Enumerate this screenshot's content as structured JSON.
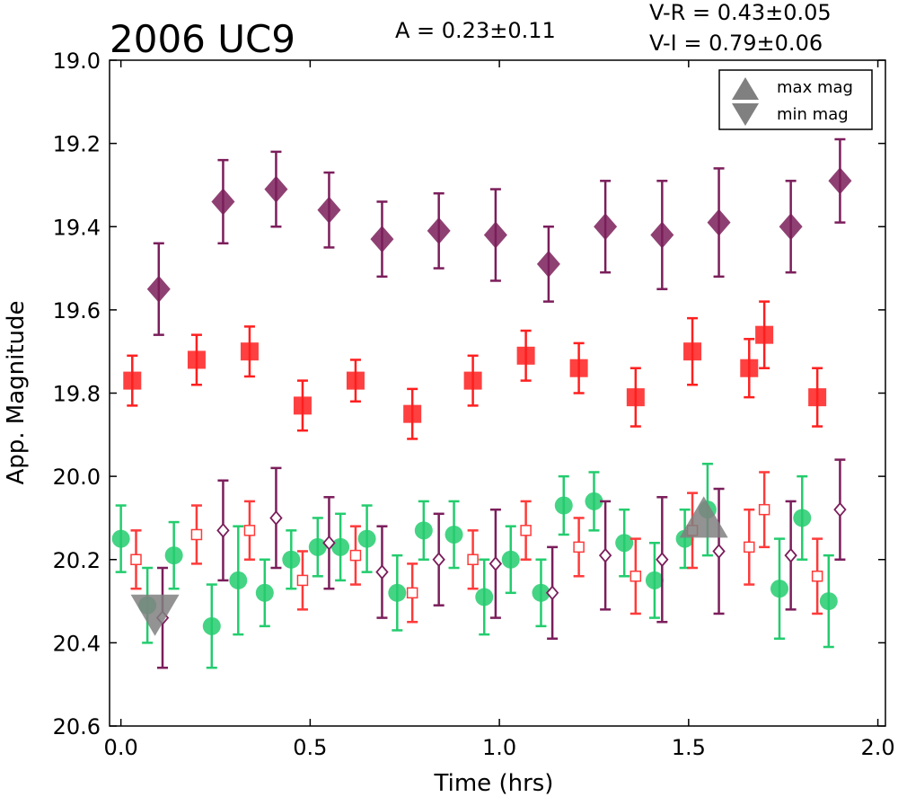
{
  "header": {
    "title": "2006 UC9",
    "amplitude": "A  = 0.23±0.11",
    "color_vr": "V-R = 0.43±0.05",
    "color_vi": "V-I  = 0.79±0.06"
  },
  "legend": {
    "max_label": "max mag",
    "min_label": "min mag",
    "marker_color": "#808080"
  },
  "chart_data": {
    "type": "scatter",
    "title": "2006 UC9",
    "xlabel": "Time (hrs)",
    "ylabel": "App. Magnitude",
    "xlim": [
      -0.03,
      2.02
    ],
    "ylim": [
      20.6,
      19.0
    ],
    "y_inverted": true,
    "xticks": [
      "0.0",
      "0.5",
      "1.0",
      "1.5",
      "2.0"
    ],
    "xtick_values": [
      0.0,
      0.5,
      1.0,
      1.5,
      2.0
    ],
    "yticks": [
      "19.0",
      "19.2",
      "19.4",
      "19.6",
      "19.8",
      "20.0",
      "20.2",
      "20.4",
      "20.6"
    ],
    "ytick_values": [
      19.0,
      19.2,
      19.4,
      19.6,
      19.8,
      20.0,
      20.2,
      20.4,
      20.6
    ],
    "grid": false,
    "legend_position": "top-right",
    "series": [
      {
        "marker": "diamond-filled",
        "color": "#7b1e5b",
        "points": [
          {
            "x": 0.1,
            "y": 19.55,
            "err": 0.11
          },
          {
            "x": 0.27,
            "y": 19.34,
            "err": 0.1
          },
          {
            "x": 0.41,
            "y": 19.31,
            "err": 0.09
          },
          {
            "x": 0.55,
            "y": 19.36,
            "err": 0.09
          },
          {
            "x": 0.69,
            "y": 19.43,
            "err": 0.09
          },
          {
            "x": 0.84,
            "y": 19.41,
            "err": 0.09
          },
          {
            "x": 0.99,
            "y": 19.42,
            "err": 0.11
          },
          {
            "x": 1.13,
            "y": 19.49,
            "err": 0.09
          },
          {
            "x": 1.28,
            "y": 19.4,
            "err": 0.11
          },
          {
            "x": 1.43,
            "y": 19.42,
            "err": 0.13
          },
          {
            "x": 1.58,
            "y": 19.39,
            "err": 0.13
          },
          {
            "x": 1.77,
            "y": 19.4,
            "err": 0.11
          },
          {
            "x": 1.9,
            "y": 19.29,
            "err": 0.1
          }
        ]
      },
      {
        "marker": "square-filled",
        "color": "#ff1f1f",
        "points": [
          {
            "x": 0.03,
            "y": 19.77,
            "err": 0.06
          },
          {
            "x": 0.2,
            "y": 19.72,
            "err": 0.06
          },
          {
            "x": 0.34,
            "y": 19.7,
            "err": 0.06
          },
          {
            "x": 0.48,
            "y": 19.83,
            "err": 0.06
          },
          {
            "x": 0.62,
            "y": 19.77,
            "err": 0.05
          },
          {
            "x": 0.77,
            "y": 19.85,
            "err": 0.06
          },
          {
            "x": 0.93,
            "y": 19.77,
            "err": 0.06
          },
          {
            "x": 1.07,
            "y": 19.71,
            "err": 0.06
          },
          {
            "x": 1.21,
            "y": 19.74,
            "err": 0.06
          },
          {
            "x": 1.36,
            "y": 19.81,
            "err": 0.07
          },
          {
            "x": 1.51,
            "y": 19.7,
            "err": 0.08
          },
          {
            "x": 1.66,
            "y": 19.74,
            "err": 0.07
          },
          {
            "x": 1.7,
            "y": 19.66,
            "err": 0.08
          },
          {
            "x": 1.84,
            "y": 19.81,
            "err": 0.07
          }
        ]
      },
      {
        "marker": "circle-filled",
        "color": "#23cc6e",
        "points": [
          {
            "x": 0.0,
            "y": 20.15,
            "err": 0.08
          },
          {
            "x": 0.07,
            "y": 20.31,
            "err": 0.09
          },
          {
            "x": 0.14,
            "y": 20.19,
            "err": 0.08
          },
          {
            "x": 0.24,
            "y": 20.36,
            "err": 0.1
          },
          {
            "x": 0.31,
            "y": 20.25,
            "err": 0.13
          },
          {
            "x": 0.38,
            "y": 20.28,
            "err": 0.08
          },
          {
            "x": 0.45,
            "y": 20.2,
            "err": 0.07
          },
          {
            "x": 0.52,
            "y": 20.17,
            "err": 0.07
          },
          {
            "x": 0.58,
            "y": 20.17,
            "err": 0.08
          },
          {
            "x": 0.65,
            "y": 20.15,
            "err": 0.08
          },
          {
            "x": 0.73,
            "y": 20.28,
            "err": 0.09
          },
          {
            "x": 0.8,
            "y": 20.13,
            "err": 0.07
          },
          {
            "x": 0.88,
            "y": 20.14,
            "err": 0.08
          },
          {
            "x": 0.96,
            "y": 20.29,
            "err": 0.09
          },
          {
            "x": 1.03,
            "y": 20.2,
            "err": 0.08
          },
          {
            "x": 1.11,
            "y": 20.28,
            "err": 0.08
          },
          {
            "x": 1.17,
            "y": 20.07,
            "err": 0.07
          },
          {
            "x": 1.25,
            "y": 20.06,
            "err": 0.07
          },
          {
            "x": 1.33,
            "y": 20.16,
            "err": 0.08
          },
          {
            "x": 1.41,
            "y": 20.25,
            "err": 0.09
          },
          {
            "x": 1.49,
            "y": 20.15,
            "err": 0.07
          },
          {
            "x": 1.55,
            "y": 20.08,
            "err": 0.11
          },
          {
            "x": 1.74,
            "y": 20.27,
            "err": 0.12
          },
          {
            "x": 1.8,
            "y": 20.1,
            "err": 0.1
          },
          {
            "x": 1.87,
            "y": 20.3,
            "err": 0.11
          }
        ]
      },
      {
        "marker": "square-open",
        "color": "#ff3a3a",
        "points": [
          {
            "x": 0.04,
            "y": 20.2,
            "err": 0.07
          },
          {
            "x": 0.2,
            "y": 20.14,
            "err": 0.07
          },
          {
            "x": 0.34,
            "y": 20.13,
            "err": 0.07
          },
          {
            "x": 0.48,
            "y": 20.25,
            "err": 0.07
          },
          {
            "x": 0.62,
            "y": 20.19,
            "err": 0.07
          },
          {
            "x": 0.77,
            "y": 20.28,
            "err": 0.07
          },
          {
            "x": 0.93,
            "y": 20.2,
            "err": 0.07
          },
          {
            "x": 1.07,
            "y": 20.13,
            "err": 0.07
          },
          {
            "x": 1.21,
            "y": 20.17,
            "err": 0.07
          },
          {
            "x": 1.36,
            "y": 20.24,
            "err": 0.09
          },
          {
            "x": 1.51,
            "y": 20.13,
            "err": 0.09
          },
          {
            "x": 1.66,
            "y": 20.17,
            "err": 0.09
          },
          {
            "x": 1.7,
            "y": 20.08,
            "err": 0.09
          },
          {
            "x": 1.84,
            "y": 20.24,
            "err": 0.09
          }
        ]
      },
      {
        "marker": "diamond-open",
        "color": "#7b1e5b",
        "points": [
          {
            "x": 0.11,
            "y": 20.34,
            "err": 0.12
          },
          {
            "x": 0.27,
            "y": 20.13,
            "err": 0.12
          },
          {
            "x": 0.41,
            "y": 20.1,
            "err": 0.12
          },
          {
            "x": 0.55,
            "y": 20.16,
            "err": 0.11
          },
          {
            "x": 0.69,
            "y": 20.23,
            "err": 0.11
          },
          {
            "x": 0.84,
            "y": 20.2,
            "err": 0.11
          },
          {
            "x": 0.99,
            "y": 20.21,
            "err": 0.13
          },
          {
            "x": 1.14,
            "y": 20.28,
            "err": 0.11
          },
          {
            "x": 1.28,
            "y": 20.19,
            "err": 0.13
          },
          {
            "x": 1.43,
            "y": 20.2,
            "err": 0.15
          },
          {
            "x": 1.58,
            "y": 20.18,
            "err": 0.15
          },
          {
            "x": 1.77,
            "y": 20.19,
            "err": 0.13
          },
          {
            "x": 1.9,
            "y": 20.08,
            "err": 0.12
          }
        ]
      }
    ],
    "extrema": [
      {
        "kind": "min",
        "x": 0.09,
        "y": 20.31,
        "color": "#808080"
      },
      {
        "kind": "max",
        "x": 1.54,
        "y": 20.13,
        "color": "#808080"
      }
    ]
  }
}
